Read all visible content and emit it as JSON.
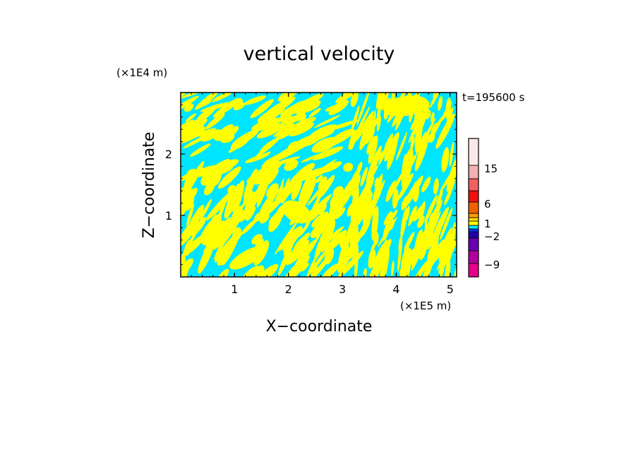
{
  "chart_data": {
    "type": "heatmap",
    "title": "vertical velocity",
    "xlabel": "X−coordinate",
    "ylabel": "Z−coordinate",
    "x_unit": "(×1E5 m)",
    "y_unit": "(×1E4 m)",
    "time_label": "t=195600 s",
    "xlim": [
      0,
      5.12
    ],
    "ylim": [
      0,
      3.0
    ],
    "x_ticks": [
      1,
      2,
      3,
      4,
      5
    ],
    "y_ticks": [
      1,
      2
    ],
    "colors": {
      "positive": "#ffff00",
      "negative": "#00e5ff",
      "frame": "#000000"
    },
    "field_pattern": "alternating tilted bands of positive (yellow) and negative (cyan) vertical velocity",
    "colorbar": {
      "levels": [
        {
          "color": "#e8008c"
        },
        {
          "color": "#b0009e"
        },
        {
          "color": "#6a00b0"
        },
        {
          "color": "#2400a8"
        },
        {
          "color": "#0038ff"
        },
        {
          "color": "#00e5ff"
        },
        {
          "color": "#ffff00"
        },
        {
          "color": "#ffd800"
        },
        {
          "color": "#ff9e00"
        },
        {
          "color": "#f06000"
        },
        {
          "color": "#ee1010"
        },
        {
          "color": "#f06060"
        },
        {
          "color": "#f2b0b0"
        },
        {
          "color": "#fbe8e8"
        }
      ],
      "tick_labels": [
        "15",
        "6",
        "1",
        "−2",
        "−9"
      ]
    }
  }
}
